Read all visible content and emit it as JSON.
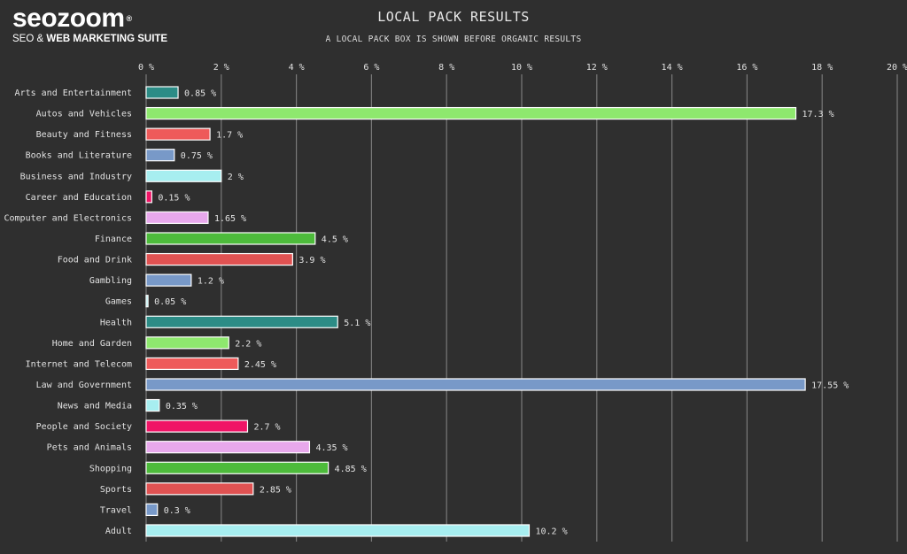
{
  "logo": {
    "word": "seozoom",
    "registered": "®",
    "tagline_plain": "SEO & ",
    "tagline_bold": "WEB MARKETING SUITE"
  },
  "chart_data": {
    "type": "bar",
    "orientation": "horizontal",
    "title": "LOCAL PACK RESULTS",
    "subtitle": "A LOCAL PACK BOX IS SHOWN BEFORE ORGANIC RESULTS",
    "xlim": [
      0,
      20
    ],
    "xticks": [
      0,
      2,
      4,
      6,
      8,
      10,
      12,
      14,
      16,
      18,
      20
    ],
    "tick_suffix": " %",
    "value_suffix": " %",
    "grid": true,
    "categories": [
      "Arts and Entertainment",
      "Autos and Vehicles",
      "Beauty and Fitness",
      "Books and Literature",
      "Business and Industry",
      "Career and Education",
      "Computer and Electronics",
      "Finance",
      "Food and Drink",
      "Gambling",
      "Games",
      "Health",
      "Home and Garden",
      "Internet and Telecom",
      "Law and Government",
      "News and Media",
      "People and Society",
      "Pets and Animals",
      "Shopping",
      "Sports",
      "Travel",
      "Adult"
    ],
    "values": [
      0.85,
      17.3,
      1.7,
      0.75,
      2,
      0.15,
      1.65,
      4.5,
      3.9,
      1.2,
      0.05,
      5.1,
      2.2,
      2.45,
      17.55,
      0.35,
      2.7,
      4.35,
      4.85,
      2.85,
      0.3,
      10.2
    ],
    "value_labels": [
      "0.85",
      "17.3",
      "1.7",
      "0.75",
      "2",
      "0.15",
      "1.65",
      "4.5",
      "3.9",
      "1.2",
      "0.05",
      "5.1",
      "2.2",
      "2.45",
      "17.55",
      "0.35",
      "2.7",
      "4.35",
      "4.85",
      "2.85",
      "0.3",
      "10.2"
    ],
    "colors": [
      "#2c8c86",
      "#8ee86e",
      "#ee5a5a",
      "#7899c8",
      "#a7eef0",
      "#f01466",
      "#e8a8ec",
      "#4dbb3b",
      "#e05252",
      "#7899c8",
      "#a7eef0",
      "#2c8c86",
      "#8ee86e",
      "#ee5a5a",
      "#7899c8",
      "#a7eef0",
      "#f01466",
      "#e8a8ec",
      "#4dbb3b",
      "#e05252",
      "#7899c8",
      "#a7eef0"
    ]
  }
}
